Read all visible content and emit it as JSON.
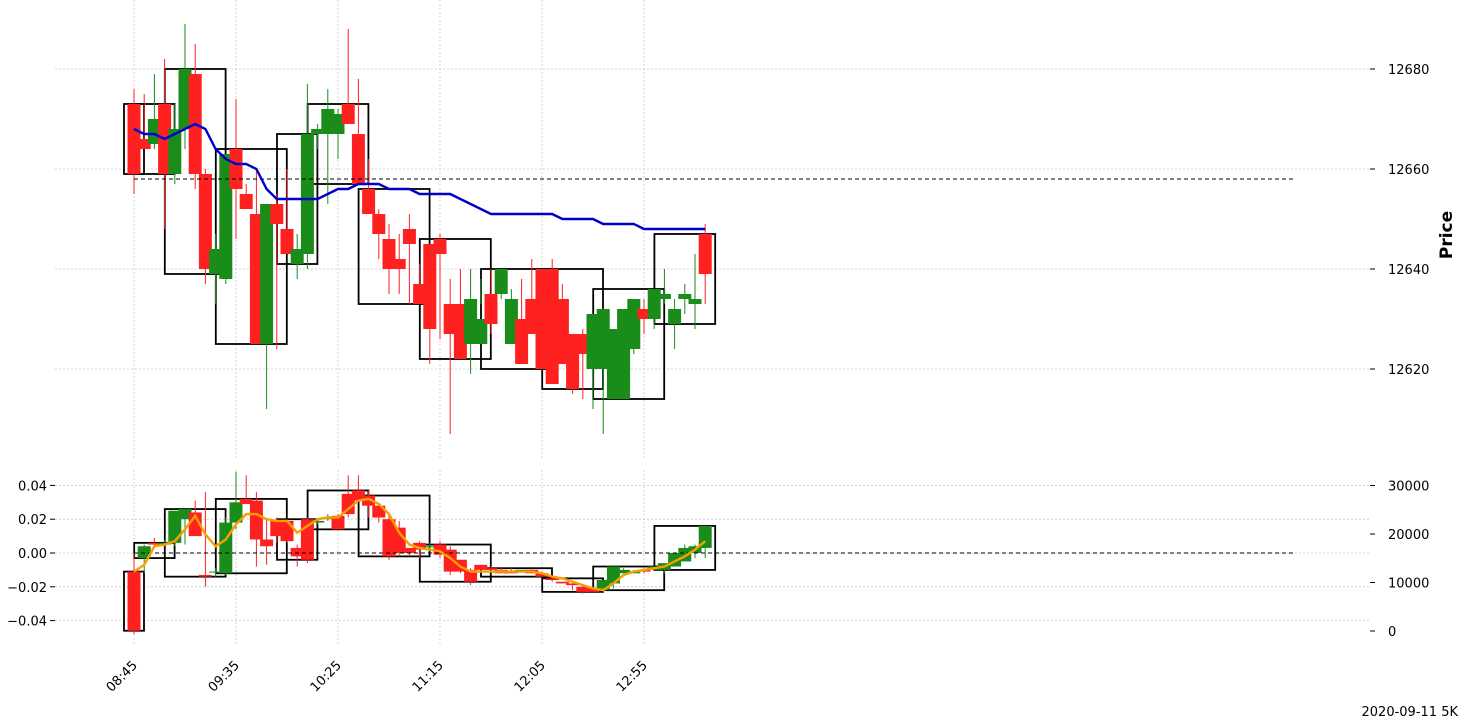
{
  "chart_data": [
    {
      "type": "candlestick",
      "panel": "price",
      "ylabel": "Price",
      "ylim": [
        12602,
        12691
      ],
      "y_ticks": [
        12620,
        12640,
        12660,
        12680
      ],
      "reference_line": 12658,
      "x": [
        "08:45",
        "08:50",
        "08:55",
        "09:00",
        "09:05",
        "09:10",
        "09:15",
        "09:20",
        "09:25",
        "09:30",
        "09:35",
        "09:40",
        "09:45",
        "09:50",
        "09:55",
        "10:00",
        "10:05",
        "10:10",
        "10:15",
        "10:20",
        "10:25",
        "10:30",
        "10:35",
        "10:40",
        "10:45",
        "10:50",
        "10:55",
        "11:00",
        "11:05",
        "11:10",
        "11:15",
        "11:20",
        "11:25",
        "11:30",
        "11:35",
        "11:40",
        "11:45",
        "11:50",
        "11:55",
        "12:00",
        "12:05",
        "12:10",
        "12:15",
        "12:20",
        "12:25",
        "12:30",
        "12:35",
        "12:40",
        "12:45",
        "12:50",
        "12:55",
        "13:00",
        "13:05",
        "13:10",
        "13:15",
        "13:20",
        "13:25"
      ],
      "x_tick_labels": [
        "08:45",
        "09:35",
        "10:25",
        "11:15",
        "12:05",
        "12:55"
      ],
      "series": [
        {
          "name": "open",
          "values": [
            12673,
            12666,
            12665,
            12673,
            12659,
            12668,
            12679,
            12659,
            12639,
            12638,
            12664,
            12655,
            12651,
            12625,
            12653,
            12648,
            12641,
            12643,
            12667,
            12667,
            12667,
            12673,
            12667,
            12656,
            12651,
            12646,
            12642,
            12648,
            12637,
            12645,
            12646,
            12633,
            12633,
            12625,
            12625,
            12635,
            12635,
            12625,
            12630,
            12634,
            12640,
            12640,
            12634,
            12627,
            12627,
            12620,
            12620,
            12614,
            12614,
            12624,
            12632,
            12630,
            12634,
            12629,
            12634,
            12633,
            12647
          ]
        },
        {
          "name": "high",
          "values": [
            12676,
            12675,
            12679,
            12682,
            12673,
            12689,
            12685,
            12660,
            12647,
            12643,
            12674,
            12657,
            12660,
            12632,
            12655,
            12660,
            12647,
            12677,
            12669,
            12676,
            12672,
            12688,
            12678,
            12662,
            12652,
            12649,
            12647,
            12651,
            12641,
            12645,
            12647,
            12638,
            12640,
            12640,
            12638,
            12640,
            12638,
            12636,
            12638,
            12642,
            12640,
            12642,
            12637,
            12627,
            12628,
            12626,
            12622,
            12621,
            12617,
            12631,
            12634,
            12635,
            12640,
            12634,
            12637,
            12643,
            12649
          ]
        },
        {
          "name": "low",
          "values": [
            12655,
            12664,
            12664,
            12648,
            12657,
            12664,
            12656,
            12637,
            12633,
            12637,
            12646,
            12654,
            12646,
            12612,
            12624,
            12648,
            12638,
            12640,
            12664,
            12653,
            12662,
            12669,
            12662,
            12652,
            12642,
            12635,
            12635,
            12633,
            12636,
            12621,
            12626,
            12607,
            12629,
            12619,
            12633,
            12627,
            12634,
            12628,
            12626,
            12632,
            12638,
            12633,
            12621,
            12615,
            12614,
            12612,
            12607,
            12614,
            12614,
            12623,
            12627,
            12628,
            12633,
            12624,
            12631,
            12628,
            12633
          ]
        },
        {
          "name": "close",
          "values": [
            12659,
            12664,
            12670,
            12659,
            12668,
            12680,
            12659,
            12640,
            12644,
            12663,
            12656,
            12652,
            12625,
            12653,
            12649,
            12643,
            12644,
            12667,
            12668,
            12672,
            12671,
            12669,
            12657,
            12651,
            12647,
            12640,
            12640,
            12645,
            12633,
            12628,
            12643,
            12627,
            12622,
            12634,
            12630,
            12629,
            12640,
            12634,
            12621,
            12627,
            12620,
            12617,
            12621,
            12616,
            12623,
            12631,
            12632,
            12628,
            12632,
            12634,
            12630,
            12636,
            12635,
            12632,
            12635,
            12634,
            12639
          ]
        },
        {
          "name": "ma",
          "values": [
            12668,
            12667,
            12667,
            12666,
            12667,
            12668,
            12669,
            12668,
            12664,
            12662,
            12661,
            12661,
            12660,
            12656,
            12654,
            12654,
            12654,
            12654,
            12654,
            12655,
            12656,
            12656,
            12657,
            12657,
            12657,
            12656,
            12656,
            12656,
            12655,
            12655,
            12655,
            12655,
            12654,
            12653,
            12652,
            12651,
            12651,
            12651,
            12651,
            12651,
            12651,
            12651,
            12650,
            12650,
            12650,
            12650,
            12649,
            12649,
            12649,
            12649,
            12648,
            12648,
            12648,
            12648,
            12648,
            12648,
            12648
          ]
        }
      ],
      "colors": {
        "up": "#1a8c1a",
        "down": "#ff2020",
        "ma": "#0000cc"
      }
    },
    {
      "type": "candlestick",
      "panel": "indicator",
      "ylim_left": [
        -0.05,
        0.05
      ],
      "y_ticks_left": [
        -0.04,
        -0.02,
        0.0,
        0.02,
        0.04
      ],
      "y_tick_labels_left": [
        "−0.04",
        "−0.02",
        "0.00",
        "0.02",
        "0.04"
      ],
      "ylim_right": [
        -1000,
        32000
      ],
      "y_ticks_right": [
        0,
        10000,
        20000,
        30000
      ],
      "reference_line_left": 0.0,
      "series": [
        {
          "name": "open",
          "values": [
            -0.011,
            -0.003,
            0.006,
            0.005,
            0.006,
            0.02,
            0.024,
            -0.013,
            -0.011,
            -0.012,
            0.018,
            0.032,
            0.031,
            0.008,
            0.019,
            0.019,
            0.003,
            0.02,
            0.018,
            0.02,
            0.022,
            0.035,
            0.037,
            0.034,
            0.028,
            0.02,
            0.015,
            0.003,
            0.006,
            0.004,
            0.005,
            0.002,
            -0.004,
            -0.01,
            -0.007,
            -0.009,
            -0.01,
            -0.011,
            -0.011,
            -0.01,
            -0.012,
            -0.015,
            -0.017,
            -0.018,
            -0.02,
            -0.021,
            -0.022,
            -0.018,
            -0.012,
            -0.012,
            -0.01,
            -0.01,
            -0.01,
            -0.008,
            -0.005,
            0.0,
            0.003
          ]
        },
        {
          "name": "high",
          "values": [
            0.0,
            0.005,
            0.009,
            0.008,
            0.008,
            0.026,
            0.031,
            0.036,
            -0.009,
            0.021,
            0.048,
            0.046,
            0.036,
            0.02,
            0.021,
            0.02,
            0.005,
            0.021,
            0.02,
            0.023,
            0.023,
            0.046,
            0.046,
            0.037,
            0.029,
            0.022,
            0.019,
            0.003,
            0.007,
            0.006,
            0.007,
            0.004,
            -0.004,
            -0.009,
            -0.007,
            -0.008,
            -0.009,
            -0.009,
            -0.01,
            -0.009,
            -0.011,
            -0.014,
            -0.017,
            -0.018,
            -0.019,
            -0.02,
            -0.021,
            -0.015,
            -0.009,
            -0.01,
            -0.009,
            -0.009,
            -0.008,
            -0.004,
            0.005,
            0.005,
            0.016
          ]
        },
        {
          "name": "low",
          "values": [
            -0.048,
            -0.012,
            0.004,
            0.004,
            0.004,
            0.005,
            0.023,
            -0.02,
            -0.014,
            -0.013,
            0.014,
            0.031,
            -0.008,
            -0.007,
            0.006,
            0.006,
            -0.008,
            -0.006,
            0.017,
            0.019,
            0.016,
            0.021,
            0.033,
            0.021,
            0.018,
            -0.004,
            -0.002,
            -0.002,
            -0.003,
            0.001,
            -0.003,
            -0.013,
            -0.012,
            -0.019,
            -0.008,
            -0.01,
            -0.01,
            -0.011,
            -0.011,
            -0.012,
            -0.013,
            -0.017,
            -0.018,
            -0.022,
            -0.024,
            -0.021,
            -0.023,
            -0.021,
            -0.012,
            -0.012,
            -0.012,
            -0.01,
            -0.012,
            -0.008,
            -0.005,
            -0.003,
            -0.003
          ]
        },
        {
          "name": "close",
          "values": [
            -0.046,
            0.004,
            0.005,
            0.006,
            0.025,
            0.026,
            0.01,
            -0.014,
            -0.011,
            0.018,
            0.03,
            0.029,
            0.008,
            0.004,
            0.01,
            0.007,
            -0.002,
            -0.004,
            0.019,
            0.021,
            0.014,
            0.023,
            0.031,
            0.028,
            0.021,
            -0.002,
            0.0,
            0.0,
            0.002,
            0.004,
            -0.001,
            -0.011,
            -0.011,
            -0.017,
            -0.01,
            -0.01,
            -0.012,
            -0.012,
            -0.01,
            -0.012,
            -0.014,
            -0.016,
            -0.018,
            -0.019,
            -0.023,
            -0.023,
            -0.016,
            -0.008,
            -0.01,
            -0.011,
            -0.011,
            -0.008,
            -0.006,
            0.0,
            0.003,
            0.004,
            0.016
          ]
        },
        {
          "name": "ma",
          "values": [
            -0.011,
            -0.007,
            0.004,
            0.005,
            0.007,
            0.014,
            0.022,
            0.011,
            0.004,
            0.008,
            0.017,
            0.023,
            0.023,
            0.02,
            0.019,
            0.019,
            0.012,
            0.016,
            0.02,
            0.021,
            0.021,
            0.026,
            0.031,
            0.032,
            0.029,
            0.023,
            0.012,
            0.005,
            0.003,
            0.002,
            0.001,
            -0.003,
            -0.008,
            -0.011,
            -0.011,
            -0.011,
            -0.011,
            -0.011,
            -0.011,
            -0.011,
            -0.012,
            -0.014,
            -0.015,
            -0.017,
            -0.019,
            -0.021,
            -0.022,
            -0.018,
            -0.013,
            -0.011,
            -0.01,
            -0.009,
            -0.008,
            -0.005,
            -0.002,
            0.002,
            0.007
          ]
        }
      ],
      "colors": {
        "up": "#1a8c1a",
        "down": "#ff2020",
        "ma": "#f5a000"
      }
    }
  ],
  "footer_label": "2020-09-11 5K"
}
